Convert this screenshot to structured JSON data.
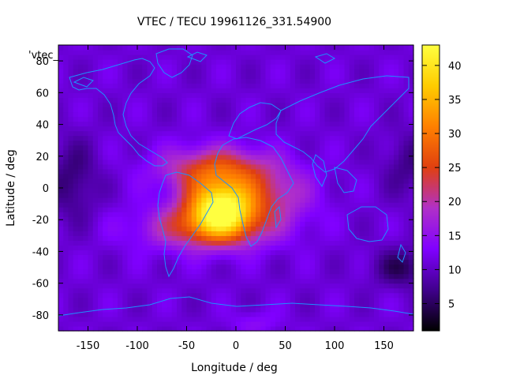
{
  "chart_data": {
    "type": "heatmap",
    "title": "VTEC / TECU 19961126_331.54900",
    "xlabel": "Longitude / deg",
    "ylabel": "Latitude / deg",
    "key_label": "'vtec_",
    "xlim": [
      -180,
      180
    ],
    "ylim": [
      -90,
      90
    ],
    "x_ticks": [
      -150,
      -100,
      -50,
      0,
      50,
      100,
      150
    ],
    "y_ticks": [
      80,
      60,
      40,
      20,
      0,
      -20,
      -40,
      -60,
      -80
    ],
    "colorbar": {
      "min": 1,
      "max": 43,
      "ticks": [
        5,
        10,
        15,
        20,
        25,
        30,
        35,
        40
      ],
      "palette": [
        "#000000",
        "#40008c",
        "#8000ff",
        "#b030c8",
        "#e04010",
        "#ff8000",
        "#ffcc00",
        "#ffff40"
      ]
    },
    "peak": {
      "lon": -15,
      "lat": -12,
      "vtec": 43
    },
    "overlay": "coastlines"
  }
}
